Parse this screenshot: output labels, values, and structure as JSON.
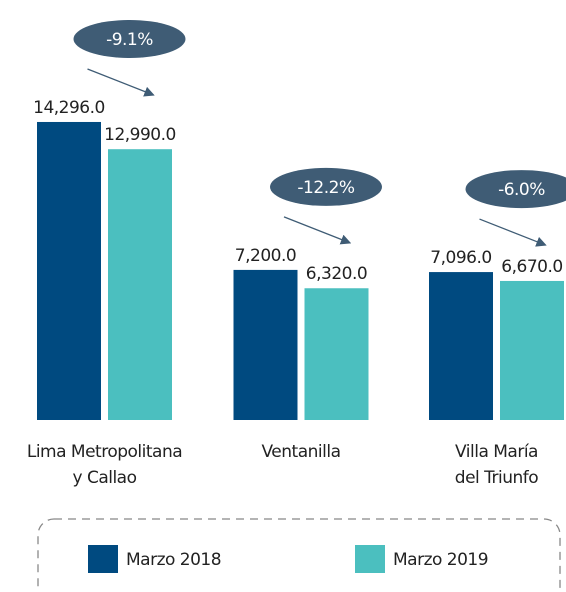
{
  "chart_data": {
    "type": "bar",
    "categories": [
      [
        "Lima Metropolitana",
        "y Callao"
      ],
      [
        "Ventanilla"
      ],
      [
        "Villa María",
        "del Triunfo"
      ]
    ],
    "series": [
      {
        "name": "Marzo 2018",
        "color": "#004a80",
        "values": [
          14296,
          7200,
          7096
        ],
        "value_labels": [
          "14,296.0",
          "7,200.0",
          "7,096.0"
        ]
      },
      {
        "name": "Marzo 2019",
        "color": "#4bbfbf",
        "values": [
          12990,
          6320,
          6670
        ],
        "value_labels": [
          "12,990.0",
          "6,320.0",
          "6,670.0"
        ]
      }
    ],
    "annotations": [
      "-9.1%",
      "-12.2%",
      "-6.0%"
    ],
    "annotation_color": "#3f5c75",
    "ylim": [
      0,
      15000
    ]
  }
}
